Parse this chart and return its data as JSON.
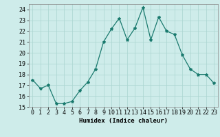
{
  "x": [
    0,
    1,
    2,
    3,
    4,
    5,
    6,
    7,
    8,
    9,
    10,
    11,
    12,
    13,
    14,
    15,
    16,
    17,
    18,
    19,
    20,
    21,
    22,
    23
  ],
  "y": [
    17.5,
    16.7,
    17.0,
    15.3,
    15.3,
    15.5,
    16.5,
    17.3,
    18.5,
    21.0,
    22.2,
    23.2,
    21.2,
    22.3,
    24.2,
    21.2,
    23.3,
    22.0,
    21.7,
    19.8,
    18.5,
    18.0,
    18.0,
    17.2
  ],
  "line_color": "#1a7a6e",
  "marker": "*",
  "marker_size": 3,
  "bg_color": "#ceecea",
  "grid_color": "#aad4d0",
  "xlabel": "Humidex (Indice chaleur)",
  "xlim": [
    -0.5,
    23.5
  ],
  "ylim": [
    15,
    24.5
  ],
  "yticks": [
    15,
    16,
    17,
    18,
    19,
    20,
    21,
    22,
    23,
    24
  ],
  "xticks": [
    0,
    1,
    2,
    3,
    4,
    5,
    6,
    7,
    8,
    9,
    10,
    11,
    12,
    13,
    14,
    15,
    16,
    17,
    18,
    19,
    20,
    21,
    22,
    23
  ],
  "xlabel_fontsize": 6.5,
  "tick_fontsize": 6
}
